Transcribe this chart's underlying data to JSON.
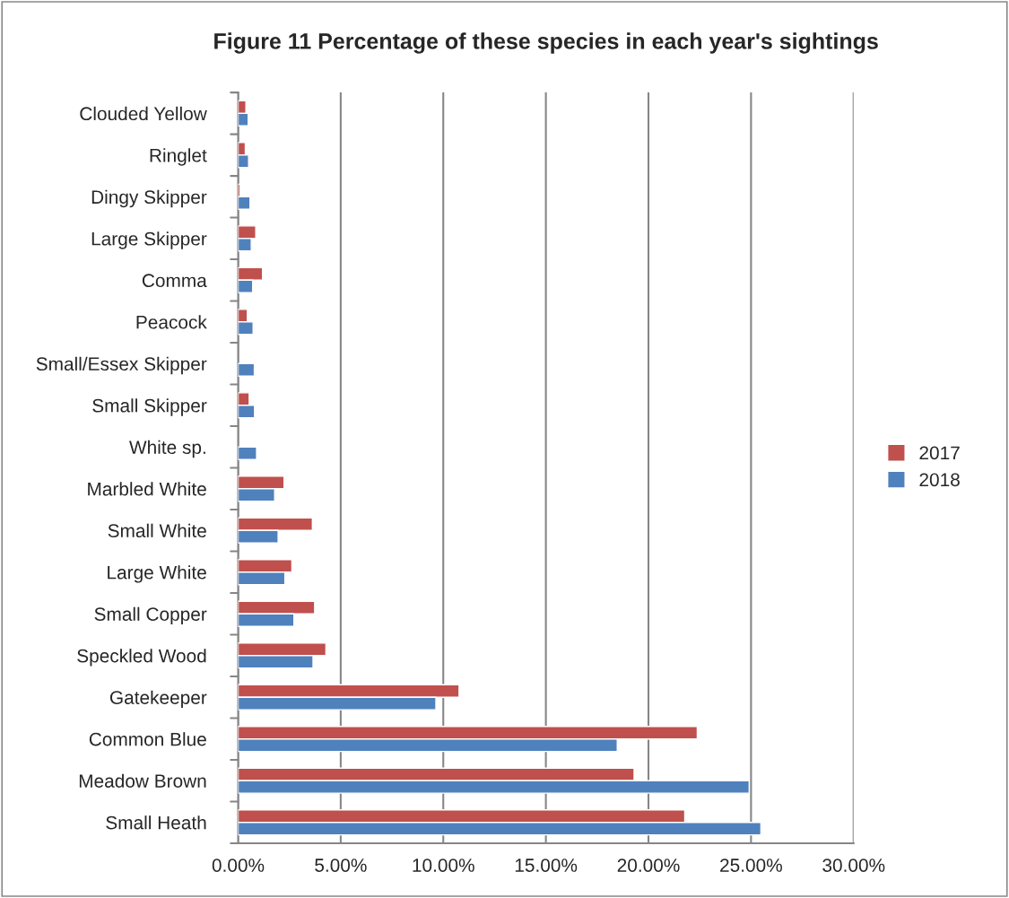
{
  "chart_data": {
    "type": "bar",
    "orientation": "horizontal",
    "title": "Figure 11 Percentage of these species in each year's sightings",
    "categories": [
      "Clouded Yellow",
      "Ringlet",
      "Dingy Skipper",
      "Large Skipper",
      "Comma",
      "Peacock",
      "Small/Essex Skipper",
      "Small Skipper",
      "White sp.",
      "Marbled White",
      "Small White",
      "Large White",
      "Small Copper",
      "Speckled Wood",
      "Gatekeeper",
      "Common Blue",
      "Meadow Brown",
      "Small Heath"
    ],
    "series": [
      {
        "name": "2017",
        "color": "#c0504d",
        "values": [
          0.38,
          0.35,
          0.1,
          0.86,
          1.19,
          0.45,
          null,
          0.54,
          null,
          2.24,
          3.62,
          2.62,
          3.73,
          4.28,
          10.77,
          22.38,
          19.3,
          21.77
        ]
      },
      {
        "name": "2018",
        "color": "#4f81bd",
        "values": [
          0.49,
          0.51,
          0.58,
          0.64,
          0.71,
          0.73,
          0.79,
          0.8,
          0.9,
          1.78,
          1.95,
          2.28,
          2.72,
          3.65,
          9.64,
          18.48,
          24.91,
          25.48
        ]
      }
    ],
    "xlim": [
      0,
      30
    ],
    "xticks": [
      {
        "value": 0,
        "label": "0.00%"
      },
      {
        "value": 5,
        "label": "5.00%"
      },
      {
        "value": 10,
        "label": "10.00%"
      },
      {
        "value": 15,
        "label": "15.00%"
      },
      {
        "value": 20,
        "label": "20.00%"
      },
      {
        "value": 25,
        "label": "25.00%"
      },
      {
        "value": 30,
        "label": "30.00%"
      }
    ],
    "grid": "x",
    "legend": "right"
  }
}
